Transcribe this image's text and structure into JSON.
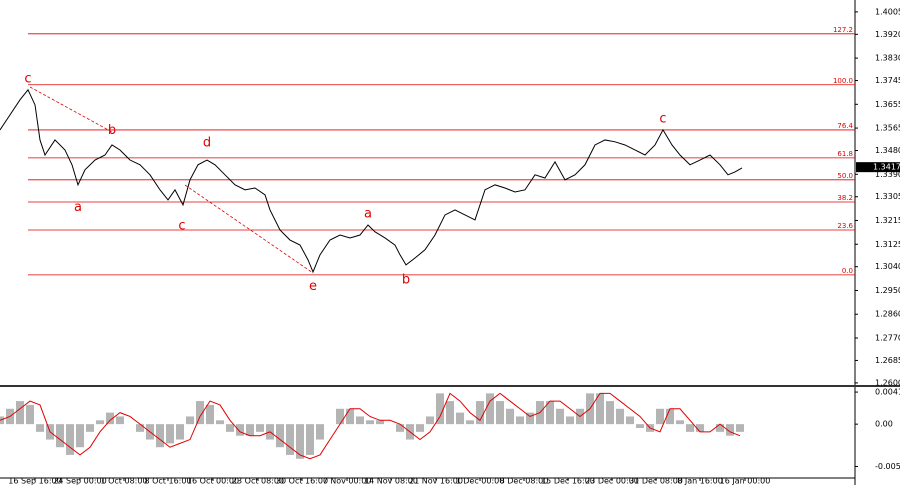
{
  "chart_data": [
    {
      "type": "line",
      "xlim": [
        0,
        855
      ],
      "ylim": [
        1.2592,
        1.405
      ],
      "yticks": [
        {
          "value": 1.4005,
          "label": "1.4005"
        },
        {
          "value": 1.392,
          "label": "1.3920"
        },
        {
          "value": 1.383,
          "label": "1.3830"
        },
        {
          "value": 1.3745,
          "label": "1.3745"
        },
        {
          "value": 1.3655,
          "label": "1.3655"
        },
        {
          "value": 1.3565,
          "label": "1.3565"
        },
        {
          "value": 1.348,
          "label": "1.3480"
        },
        {
          "value": 1.339,
          "label": "1.3390"
        },
        {
          "value": 1.3305,
          "label": "1.3305"
        },
        {
          "value": 1.3215,
          "label": "1.3215"
        },
        {
          "value": 1.3125,
          "label": "1.3125"
        },
        {
          "value": 1.304,
          "label": "1.3040"
        },
        {
          "value": 1.295,
          "label": "1.2950"
        },
        {
          "value": 1.286,
          "label": "1.2860"
        },
        {
          "value": 1.277,
          "label": "1.2770"
        },
        {
          "value": 1.2685,
          "label": "1.2685"
        },
        {
          "value": 1.26,
          "label": "1.2600"
        }
      ],
      "x": [
        0,
        10,
        20,
        28,
        35,
        40,
        45,
        55,
        65,
        72,
        78,
        85,
        95,
        105,
        112,
        120,
        130,
        140,
        150,
        160,
        168,
        175,
        183,
        190,
        198,
        207,
        215,
        225,
        235,
        245,
        255,
        265,
        270,
        280,
        290,
        300,
        308,
        313,
        320,
        330,
        340,
        350,
        360,
        368,
        375,
        385,
        395,
        400,
        406,
        415,
        425,
        435,
        445,
        455,
        465,
        475,
        485,
        495,
        505,
        515,
        525,
        535,
        545,
        555,
        565,
        575,
        585,
        595,
        605,
        615,
        625,
        635,
        645,
        655,
        663,
        672,
        680,
        690,
        700,
        710,
        720,
        728,
        735,
        742
      ],
      "series": [
        {
          "color": "#000000",
          "values": [
            1.3558,
            1.3615,
            1.3672,
            1.371,
            1.3653,
            1.352,
            1.3463,
            1.352,
            1.3482,
            1.3426,
            1.335,
            1.3407,
            1.3444,
            1.3463,
            1.3501,
            1.3482,
            1.3444,
            1.3426,
            1.3388,
            1.3331,
            1.3293,
            1.3331,
            1.3274,
            1.3369,
            1.3426,
            1.3444,
            1.3426,
            1.3388,
            1.335,
            1.3331,
            1.3338,
            1.3312,
            1.3255,
            1.3179,
            1.3141,
            1.3122,
            1.3066,
            1.302,
            1.3085,
            1.3141,
            1.316,
            1.3149,
            1.316,
            1.3198,
            1.3172,
            1.3149,
            1.3122,
            1.3085,
            1.3047,
            1.3073,
            1.3104,
            1.316,
            1.3236,
            1.3255,
            1.3236,
            1.3217,
            1.3331,
            1.335,
            1.3338,
            1.3323,
            1.3331,
            1.3388,
            1.3376,
            1.3437,
            1.3369,
            1.3388,
            1.3426,
            1.3501,
            1.352,
            1.3513,
            1.3501,
            1.3482,
            1.3463,
            1.3501,
            1.3558,
            1.3501,
            1.3463,
            1.3426,
            1.3444,
            1.3463,
            1.3426,
            1.3388,
            1.3399,
            1.3414
          ]
        }
      ],
      "current_price": 1.3417,
      "levels": [
        {
          "label": "127.2",
          "value": 1.3922
        },
        {
          "label": "100.0",
          "value": 1.3729
        },
        {
          "label": "76.4",
          "value": 1.3558
        },
        {
          "label": "61.8",
          "value": 1.3452
        },
        {
          "label": "50.0",
          "value": 1.3369
        },
        {
          "label": "38.2",
          "value": 1.3285
        },
        {
          "label": "23.6",
          "value": 1.3179
        },
        {
          "label": "0.0",
          "value": 1.3009
        }
      ],
      "annotations": [
        {
          "text": "c",
          "x": 28,
          "y": 1.375
        },
        {
          "text": "b",
          "x": 112,
          "y": 1.3555
        },
        {
          "text": "a",
          "x": 78,
          "y": 1.3265
        },
        {
          "text": "d",
          "x": 207,
          "y": 1.3508
        },
        {
          "text": "c",
          "x": 182,
          "y": 1.3195
        },
        {
          "text": "e",
          "x": 313,
          "y": 1.2965
        },
        {
          "text": "a",
          "x": 368,
          "y": 1.324
        },
        {
          "text": "b",
          "x": 406,
          "y": 1.299
        },
        {
          "text": "c",
          "x": 663,
          "y": 1.36
        }
      ]
    },
    {
      "type": "macd",
      "xlim": [
        0,
        855
      ],
      "ylim": [
        -0.007,
        0.0047
      ],
      "yticks": [
        0.00417,
        {
          "value": 0,
          "label": "0.00"
        },
        -0.0055
      ],
      "xticks": [
        {
          "value": 35,
          "label": "16 Sep 16:00"
        },
        {
          "value": 80,
          "label": "24 Sep 00:00"
        },
        {
          "value": 124,
          "label": "1 Oct 08:00"
        },
        {
          "value": 168,
          "label": "8 Oct 16:00"
        },
        {
          "value": 213,
          "label": "16 Oct 00:00"
        },
        {
          "value": 258,
          "label": "23 Oct 08:00"
        },
        {
          "value": 302,
          "label": "30 Oct 16:00"
        },
        {
          "value": 347,
          "label": "7 Nov 00:00"
        },
        {
          "value": 391,
          "label": "14 Nov 08:00"
        },
        {
          "value": 436,
          "label": "21 Nov 16:00"
        },
        {
          "value": 480,
          "label": "1 Dec 00:00"
        },
        {
          "value": 524,
          "label": "8 Dec 08:00"
        },
        {
          "value": 568,
          "label": "15 Dec 16:00"
        },
        {
          "value": 612,
          "label": "23 Dec 00:00"
        },
        {
          "value": 656,
          "label": "31 Dec 08:00"
        },
        {
          "value": 700,
          "label": "8 Jan 16:00"
        },
        {
          "value": 745,
          "label": "16 Jan 00:00"
        }
      ],
      "x": [
        0,
        10,
        20,
        30,
        40,
        50,
        60,
        70,
        80,
        90,
        100,
        110,
        120,
        130,
        140,
        150,
        160,
        170,
        180,
        190,
        200,
        210,
        220,
        230,
        240,
        250,
        260,
        270,
        280,
        290,
        300,
        310,
        320,
        330,
        340,
        350,
        360,
        370,
        380,
        390,
        400,
        410,
        420,
        430,
        440,
        450,
        460,
        470,
        480,
        490,
        500,
        510,
        520,
        530,
        540,
        550,
        560,
        570,
        580,
        590,
        600,
        610,
        620,
        630,
        640,
        650,
        660,
        670,
        680,
        690,
        700,
        710,
        720,
        730,
        740
      ],
      "series": [
        {
          "color": "#b4b4b4",
          "values": [
            0.001,
            0.002,
            0.003,
            0.0025,
            -0.001,
            -0.002,
            -0.003,
            -0.004,
            -0.003,
            -0.001,
            0.0005,
            0.0015,
            0.001,
            0,
            -0.001,
            -0.002,
            -0.003,
            -0.0025,
            -0.002,
            0.001,
            0.003,
            0.0025,
            0.0005,
            -0.001,
            -0.0015,
            -0.0015,
            -0.001,
            -0.002,
            -0.003,
            -0.004,
            -0.0045,
            -0.004,
            -0.002,
            0,
            0.002,
            0.002,
            0.001,
            0.0005,
            0.0005,
            0,
            -0.001,
            -0.002,
            -0.001,
            0.001,
            0.004,
            0.003,
            0.0015,
            0.0005,
            0.003,
            0.004,
            0.003,
            0.002,
            0.001,
            0.0015,
            0.003,
            0.003,
            0.002,
            0.001,
            0.002,
            0.004,
            0.004,
            0.003,
            0.002,
            0.001,
            -0.0005,
            -0.001,
            0.002,
            0.002,
            0.0005,
            -0.001,
            -0.001,
            0,
            -0.001,
            -0.0015,
            -0.001
          ]
        },
        {
          "color": "#e00000",
          "values": [
            0.0005,
            0.001,
            0.002,
            0.003,
            0.0025,
            -0.001,
            -0.002,
            -0.003,
            -0.004,
            -0.003,
            -0.001,
            0.0005,
            0.0015,
            0.001,
            0,
            -0.001,
            -0.002,
            -0.003,
            -0.0025,
            -0.002,
            0.001,
            0.003,
            0.0025,
            0.0005,
            -0.001,
            -0.0015,
            -0.0015,
            -0.001,
            -0.002,
            -0.003,
            -0.004,
            -0.0045,
            -0.004,
            -0.002,
            0,
            0.002,
            0.002,
            0.001,
            0.0005,
            0.0005,
            0,
            -0.001,
            -0.002,
            -0.001,
            0.001,
            0.004,
            0.003,
            0.0015,
            0.0005,
            0.003,
            0.004,
            0.003,
            0.002,
            0.001,
            0.0015,
            0.003,
            0.003,
            0.002,
            0.001,
            0.002,
            0.004,
            0.004,
            0.003,
            0.002,
            0.001,
            -0.0005,
            -0.001,
            0.002,
            0.002,
            0.0005,
            -0.001,
            -0.001,
            0,
            -0.001,
            -0.0015
          ]
        }
      ]
    }
  ]
}
